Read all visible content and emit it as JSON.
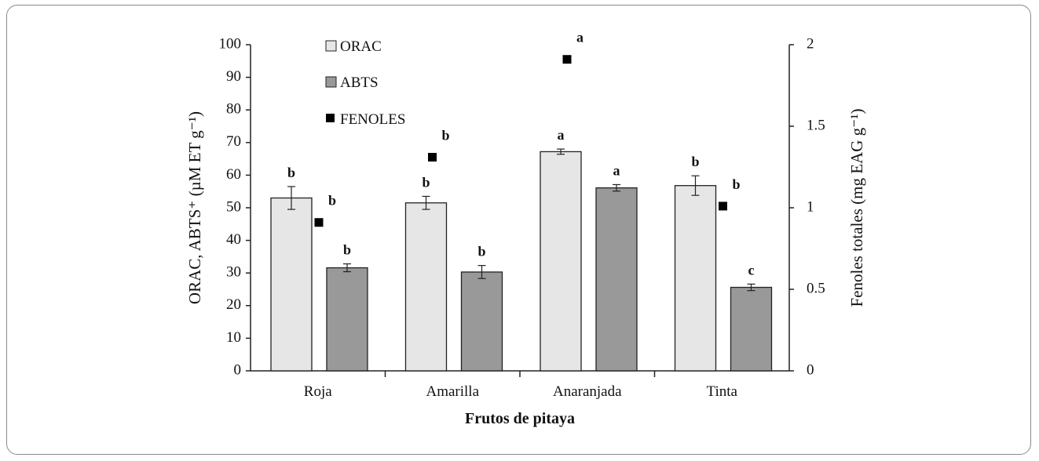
{
  "chart_data": {
    "type": "bar",
    "categories": [
      "Roja",
      "Amarilla",
      "Anaranjada",
      "Tinta"
    ],
    "series": [
      {
        "name": "ORAC",
        "axis": "left",
        "kind": "bar",
        "color": "#e6e6e6",
        "values": [
          53,
          51.5,
          67.2,
          56.8
        ],
        "errors": [
          3.5,
          2.0,
          0.8,
          3.0
        ],
        "letters": [
          "b",
          "b",
          "a",
          "b"
        ]
      },
      {
        "name": "ABTS",
        "axis": "left",
        "kind": "bar",
        "color": "#999999",
        "values": [
          31.6,
          30.3,
          56.1,
          25.6
        ],
        "errors": [
          1.2,
          2.0,
          1.0,
          1.0
        ],
        "letters": [
          "b",
          "b",
          "a",
          "c"
        ]
      },
      {
        "name": "FENOLES",
        "axis": "right",
        "kind": "marker",
        "color": "#000000",
        "values": [
          0.91,
          1.31,
          1.91,
          1.01
        ],
        "letters": [
          "b",
          "b",
          "a",
          "b"
        ]
      }
    ],
    "title": "",
    "xlabel": "Frutos de pitaya",
    "ylabel_left": "ORAC, ABTS⁺ (µM ET g⁻¹)",
    "ylabel_right": "Fenoles totales  (mg EAG g⁻¹)",
    "ylim_left": [
      0,
      100
    ],
    "yticks_left": [
      0,
      10,
      20,
      30,
      40,
      50,
      60,
      70,
      80,
      90,
      100
    ],
    "ylim_right": [
      0,
      2
    ],
    "yticks_right": [
      "0",
      "0.5",
      "1",
      "1.5",
      "2"
    ],
    "legend_position": "top-left"
  }
}
